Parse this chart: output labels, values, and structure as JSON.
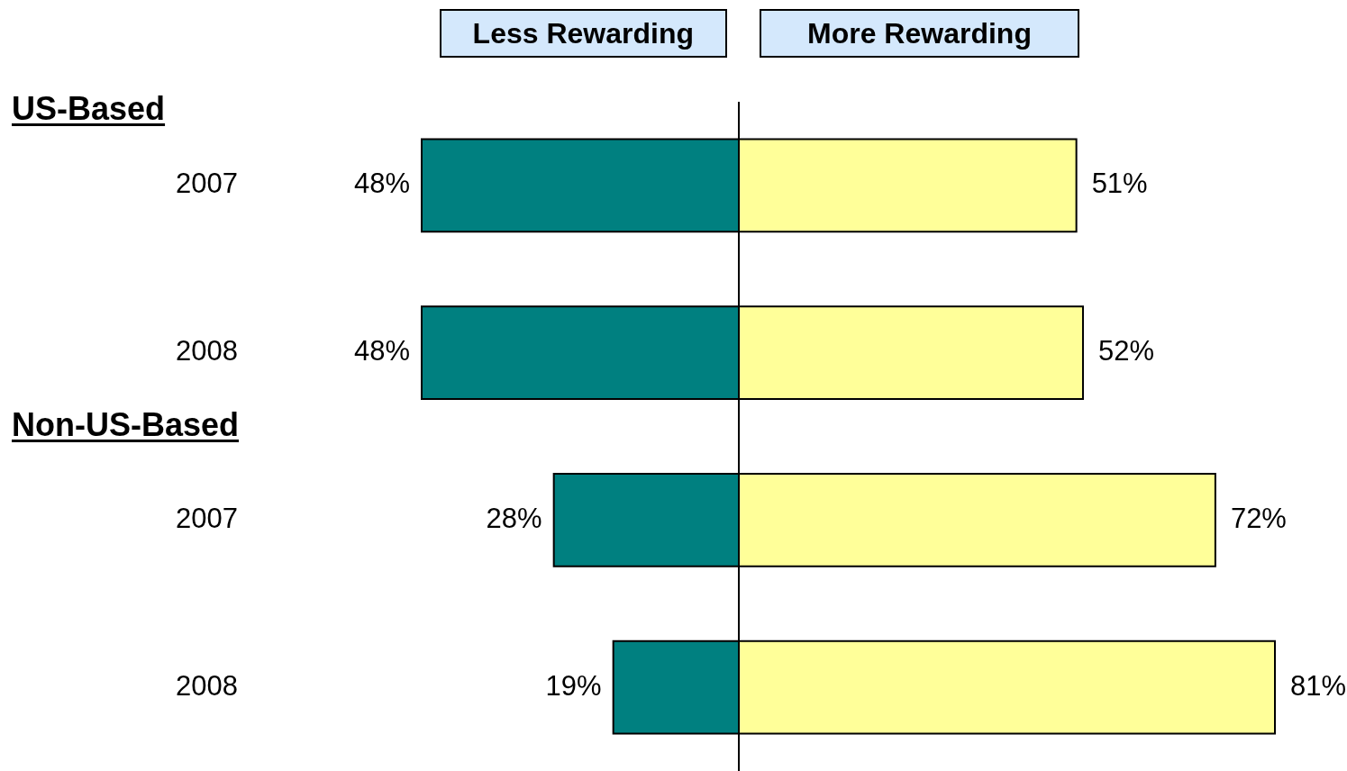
{
  "chart_data": [
    {
      "type": "bar",
      "orientation": "horizontal",
      "title": "Less Rewarding",
      "categories": [
        "2007",
        "2008",
        "2007",
        "2008"
      ],
      "values": [
        48,
        48,
        28,
        19
      ],
      "color": "#008080",
      "value_labels": [
        "48%",
        "48%",
        "28%",
        "19%"
      ],
      "xlim": [
        48,
        0
      ],
      "tick_labels": "y",
      "annotations": [
        "US-Based",
        "Non-US-Based"
      ]
    },
    {
      "type": "bar",
      "orientation": "horizontal",
      "title": "More Rewarding",
      "categories": [
        "2007",
        "2008",
        "2007",
        "2008"
      ],
      "values": [
        51,
        52,
        72,
        81
      ],
      "color": "#ffff99",
      "value_labels": [
        "51%",
        "52%",
        "72%",
        "81%"
      ],
      "xlim": [
        0,
        81
      ],
      "tick_labels": false
    }
  ]
}
